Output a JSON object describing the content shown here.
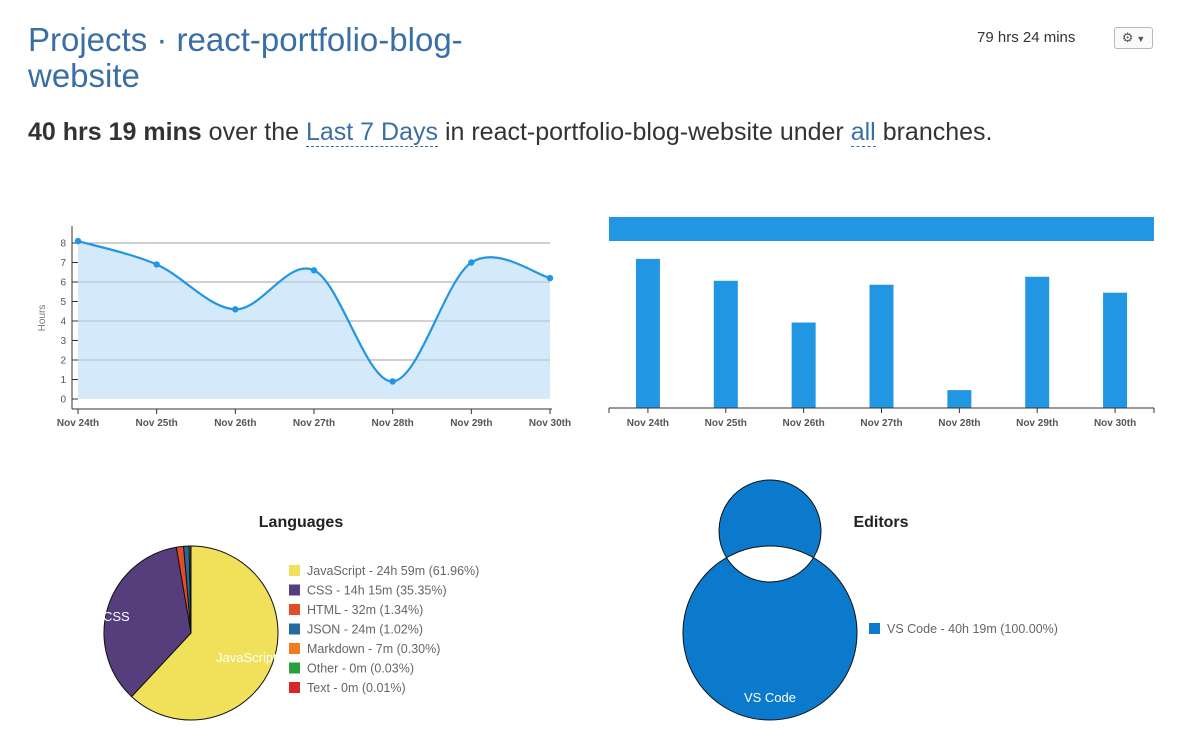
{
  "header": {
    "title": "Projects · react-portfolio-blog-website",
    "total_time": "79 hrs 24 mins",
    "settings_icon": "gear-icon"
  },
  "summary": {
    "duration": "40 hrs 19 mins",
    "text_over": "over the",
    "range": "Last 7 Days",
    "text_in": "in react-portfolio-blog-website under",
    "branches": "all",
    "text_end": "branches."
  },
  "chart_data": [
    {
      "type": "area",
      "categories": [
        "Nov 24th",
        "Nov 25th",
        "Nov 26th",
        "Nov 27th",
        "Nov 28th",
        "Nov 29th",
        "Nov 30th"
      ],
      "values": [
        8.1,
        6.9,
        4.6,
        6.6,
        0.9,
        7.0,
        6.2
      ],
      "ylabel": "Hours",
      "ylim": [
        0,
        8
      ],
      "yticks": [
        "0",
        "1",
        "2",
        "3",
        "4",
        "5",
        "6",
        "7",
        "8"
      ],
      "grid": true,
      "line_color": "#2196e3",
      "fill_color": "#d4eafa"
    },
    {
      "type": "bar",
      "categories": [
        "Nov 24th",
        "Nov 25th",
        "Nov 26th",
        "Nov 27th",
        "Nov 28th",
        "Nov 29th",
        "Nov 30th"
      ],
      "values": [
        7.5,
        6.4,
        4.3,
        6.2,
        0.9,
        6.6,
        5.8
      ],
      "ylim": [
        0,
        8.4
      ],
      "bar_color": "#2196e3"
    },
    {
      "type": "pie",
      "title": "Languages",
      "slices": [
        {
          "name": "JavaScript",
          "legend": "JavaScript - 24h 59m (61.96%)",
          "value": 61.96,
          "color": "#f0e05a",
          "label": "JavaScript"
        },
        {
          "name": "CSS",
          "legend": "CSS - 14h 15m (35.35%)",
          "value": 35.35,
          "color": "#563d7c",
          "label": "CSS"
        },
        {
          "name": "HTML",
          "legend": "HTML - 32m (1.34%)",
          "value": 1.34,
          "color": "#e34c26",
          "label": ""
        },
        {
          "name": "JSON",
          "legend": "JSON - 24m (1.02%)",
          "value": 1.02,
          "color": "#236b9e",
          "label": ""
        },
        {
          "name": "Markdown",
          "legend": "Markdown - 7m (0.30%)",
          "value": 0.3,
          "color": "#f07d1e",
          "label": ""
        },
        {
          "name": "Other",
          "legend": "Other - 0m (0.03%)",
          "value": 0.03,
          "color": "#2ba03a",
          "label": ""
        },
        {
          "name": "Text",
          "legend": "Text - 0m (0.01%)",
          "value": 0.01,
          "color": "#d62828",
          "label": ""
        }
      ]
    },
    {
      "type": "pie",
      "title": "Editors",
      "slices": [
        {
          "name": "VS Code",
          "legend": "VS Code - 40h 19m (100.00%)",
          "value": 100.0,
          "color": "#0b7acc",
          "label": "VS Code"
        }
      ]
    }
  ]
}
